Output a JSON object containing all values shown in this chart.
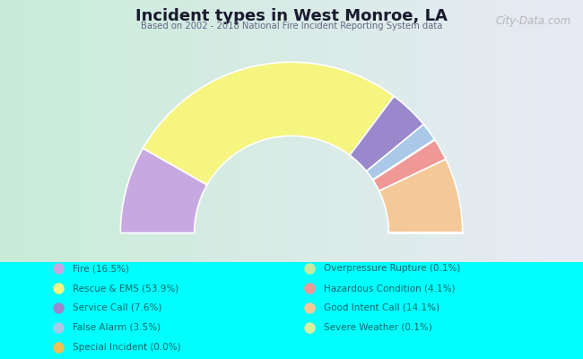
{
  "title": "Incident types in West Monroe, LA",
  "subtitle": "Based on 2002 - 2018 National Fire Incident Reporting System data",
  "watermark": "City-Data.com",
  "background_color": "#00FFFF",
  "segments": [
    {
      "label": "Fire (16.5%)",
      "value": 16.5,
      "color": "#c8a8e0"
    },
    {
      "label": "Rescue & EMS (53.9%)",
      "value": 53.9,
      "color": "#f5f580"
    },
    {
      "label": "Service Call (7.6%)",
      "value": 7.6,
      "color": "#9988cc"
    },
    {
      "label": "False Alarm (3.5%)",
      "value": 3.5,
      "color": "#aac8e8"
    },
    {
      "label": "Special Incident (0.0%)",
      "value": 0.01,
      "color": "#f0c050"
    },
    {
      "label": "Overpressure Rupture (0.1%)",
      "value": 0.1,
      "color": "#c8e8a0"
    },
    {
      "label": "Hazardous Condition (4.1%)",
      "value": 4.1,
      "color": "#f09898"
    },
    {
      "label": "Good Intent Call (14.1%)",
      "value": 14.1,
      "color": "#f5c898"
    },
    {
      "label": "Severe Weather (0.1%)",
      "value": 0.1,
      "color": "#d8f0a0"
    }
  ],
  "legend_labels_left": [
    "Fire (16.5%)",
    "Rescue & EMS (53.9%)",
    "Service Call (7.6%)",
    "False Alarm (3.5%)",
    "Special Incident (0.0%)"
  ],
  "legend_labels_right": [
    "Overpressure Rupture (0.1%)",
    "Hazardous Condition (4.1%)",
    "Good Intent Call (14.1%)",
    "Severe Weather (0.1%)"
  ],
  "legend_text_color": "#006666",
  "title_color": "#1a1a2e",
  "chart_bg_left": "#c8ecd8",
  "chart_bg_right": "#e8eaf4",
  "outer_r": 0.88,
  "inner_r": 0.5
}
